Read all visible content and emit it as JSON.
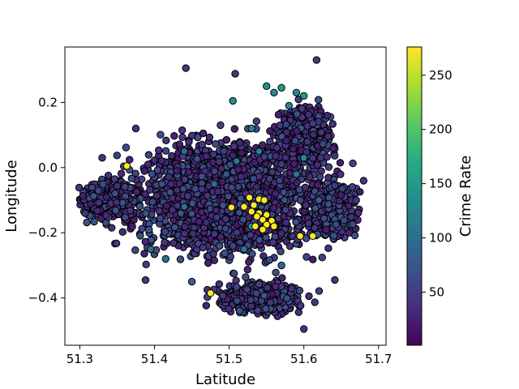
{
  "chart_data": {
    "type": "scatter",
    "title": "",
    "xlabel": "Latitude",
    "ylabel": "Longitude",
    "xlim": [
      51.28,
      51.71
    ],
    "ylim": [
      -0.545,
      0.37
    ],
    "xticks": [
      51.3,
      51.4,
      51.5,
      51.6,
      51.7
    ],
    "xtick_labels": [
      "51.3",
      "51.4",
      "51.5",
      "51.6",
      "51.7"
    ],
    "yticks": [
      -0.4,
      -0.2,
      0.0,
      0.2
    ],
    "ytick_labels": [
      "−0.4",
      "−0.2",
      "0.0",
      "0.2"
    ],
    "grid": false,
    "point_edge_color": "#000000",
    "colorbar": {
      "label": "Crime Rate",
      "colormap": "viridis",
      "range": [
        1,
        276
      ],
      "ticks": [
        50,
        100,
        150,
        200,
        250
      ],
      "tick_labels": [
        "50",
        "100",
        "150",
        "200",
        "250"
      ]
    },
    "hotspot_points": [
      {
        "x": 51.363,
        "y": 0.005,
        "value": 276
      },
      {
        "x": 51.475,
        "y": -0.385,
        "value": 276
      },
      {
        "x": 51.527,
        "y": -0.092,
        "value": 276
      },
      {
        "x": 51.54,
        "y": -0.097,
        "value": 276
      },
      {
        "x": 51.547,
        "y": -0.1,
        "value": 276
      },
      {
        "x": 51.533,
        "y": -0.115,
        "value": 276
      },
      {
        "x": 51.52,
        "y": -0.12,
        "value": 276
      },
      {
        "x": 51.503,
        "y": -0.122,
        "value": 276
      },
      {
        "x": 51.53,
        "y": -0.135,
        "value": 276
      },
      {
        "x": 51.54,
        "y": -0.14,
        "value": 276
      },
      {
        "x": 51.55,
        "y": -0.145,
        "value": 276
      },
      {
        "x": 51.537,
        "y": -0.15,
        "value": 276
      },
      {
        "x": 51.545,
        "y": -0.16,
        "value": 276
      },
      {
        "x": 51.557,
        "y": -0.163,
        "value": 276
      },
      {
        "x": 51.55,
        "y": -0.175,
        "value": 276
      },
      {
        "x": 51.56,
        "y": -0.18,
        "value": 276
      },
      {
        "x": 51.545,
        "y": -0.19,
        "value": 276
      },
      {
        "x": 51.535,
        "y": -0.18,
        "value": 276
      },
      {
        "x": 51.595,
        "y": -0.21,
        "value": 276
      },
      {
        "x": 51.612,
        "y": -0.21,
        "value": 276
      }
    ],
    "cluster_points": [
      {
        "x": 51.55,
        "y": 0.25,
        "value": 140
      },
      {
        "x": 51.56,
        "y": 0.23,
        "value": 135
      },
      {
        "x": 51.57,
        "y": 0.245,
        "value": 145
      },
      {
        "x": 51.59,
        "y": 0.23,
        "value": 130
      },
      {
        "x": 51.6,
        "y": 0.22,
        "value": 150
      },
      {
        "x": 51.505,
        "y": 0.205,
        "value": 140
      },
      {
        "x": 51.53,
        "y": 0.12,
        "value": 120
      },
      {
        "x": 51.58,
        "y": 0.19,
        "value": 125
      },
      {
        "x": 51.54,
        "y": 0.05,
        "value": 120
      },
      {
        "x": 51.51,
        "y": 0.02,
        "value": 110
      },
      {
        "x": 51.6,
        "y": 0.03,
        "value": 130
      },
      {
        "x": 51.59,
        "y": -0.02,
        "value": 115
      },
      {
        "x": 51.53,
        "y": -0.18,
        "value": 150
      },
      {
        "x": 51.52,
        "y": -0.25,
        "value": 110
      },
      {
        "x": 51.44,
        "y": -0.12,
        "value": 100
      },
      {
        "x": 51.415,
        "y": -0.28,
        "value": 105
      },
      {
        "x": 51.395,
        "y": -0.25,
        "value": 100
      },
      {
        "x": 51.48,
        "y": -0.05,
        "value": 95
      },
      {
        "x": 51.44,
        "y": 0.05,
        "value": 95
      },
      {
        "x": 51.57,
        "y": -0.3,
        "value": 90
      },
      {
        "x": 51.45,
        "y": -0.35,
        "value": 85
      },
      {
        "x": 51.62,
        "y": -0.1,
        "value": 90
      }
    ],
    "background_cloud": {
      "value_range": [
        20,
        75
      ],
      "regions": [
        {
          "center_x": 51.49,
          "center_y": -0.08,
          "spread_x": 0.085,
          "spread_y": 0.155,
          "count": 2200
        },
        {
          "center_x": 51.5,
          "center_y": -0.1,
          "spread_x": 0.15,
          "spread_y": 0.2,
          "count": 1500
        },
        {
          "center_x": 51.6,
          "center_y": 0.1,
          "spread_x": 0.045,
          "spread_y": 0.1,
          "count": 500
        },
        {
          "center_x": 51.54,
          "center_y": -0.4,
          "spread_x": 0.065,
          "spread_y": 0.06,
          "count": 450
        },
        {
          "center_x": 51.34,
          "center_y": -0.1,
          "spread_x": 0.04,
          "spread_y": 0.08,
          "count": 400
        },
        {
          "center_x": 51.64,
          "center_y": -0.12,
          "spread_x": 0.035,
          "spread_y": 0.1,
          "count": 350
        }
      ],
      "outliers": [
        {
          "x": 51.442,
          "y": 0.305
        },
        {
          "x": 51.508,
          "y": 0.288
        },
        {
          "x": 51.617,
          "y": 0.33
        },
        {
          "x": 51.388,
          "y": -0.345
        },
        {
          "x": 51.307,
          "y": -0.14
        },
        {
          "x": 51.68,
          "y": -0.04
        },
        {
          "x": 51.6,
          "y": -0.495
        },
        {
          "x": 51.67,
          "y": -0.1
        },
        {
          "x": 51.33,
          "y": 0.03
        },
        {
          "x": 51.375,
          "y": 0.12
        }
      ]
    }
  }
}
